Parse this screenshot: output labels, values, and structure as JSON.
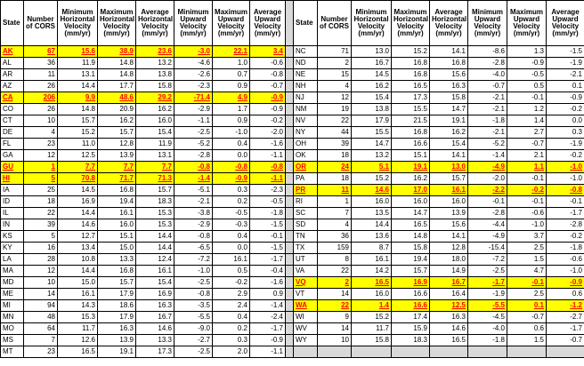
{
  "headers": [
    "State",
    "Number of CORS",
    "Minimum Horizontal Velocity (mm/yr)",
    "Maximum Horizontal Velocity (mm/yr)",
    "Average Horizontal Velocity (mm/yr)",
    "Minimum Upward Velocity (mm/yr)",
    "Maximum Upward Velocity (mm/yr)",
    "Average Upward Velocity (mm/yr)"
  ],
  "highlight_color": "#ffff00",
  "highlight_text_color": "#ff0000",
  "left_rows": [
    {
      "cells": [
        "AK",
        "67",
        "15.6",
        "38.9",
        "23.6",
        "-3.0",
        "22.1",
        "3.4"
      ],
      "highlight": true
    },
    {
      "cells": [
        "AL",
        "36",
        "11.9",
        "14.8",
        "13.2",
        "-4.6",
        "1.0",
        "-0.6"
      ],
      "highlight": false
    },
    {
      "cells": [
        "AR",
        "11",
        "13.1",
        "14.8",
        "13.8",
        "-2.6",
        "0.7",
        "-0.8"
      ],
      "highlight": false
    },
    {
      "cells": [
        "AZ",
        "26",
        "14.4",
        "17.7",
        "15.8",
        "-2.3",
        "0.9",
        "-0.7"
      ],
      "highlight": false
    },
    {
      "cells": [
        "CA",
        "206",
        "9.9",
        "48.6",
        "29.2",
        "-71.4",
        "4.9",
        "-0.9"
      ],
      "highlight": true
    },
    {
      "cells": [
        "CO",
        "26",
        "14.8",
        "20.9",
        "16.2",
        "-2.9",
        "1.7",
        "-0.9"
      ],
      "highlight": false
    },
    {
      "cells": [
        "CT",
        "10",
        "15.7",
        "16.2",
        "16.0",
        "-1.1",
        "0.9",
        "-0.2"
      ],
      "highlight": false
    },
    {
      "cells": [
        "DE",
        "4",
        "15.2",
        "15.7",
        "15.4",
        "-2.5",
        "-1.0",
        "-2.0"
      ],
      "highlight": false
    },
    {
      "cells": [
        "FL",
        "23",
        "11.0",
        "12.8",
        "11.9",
        "-5.2",
        "0.4",
        "-1.6"
      ],
      "highlight": false
    },
    {
      "cells": [
        "GA",
        "12",
        "12.5",
        "13.9",
        "13.1",
        "-2.8",
        "0.0",
        "-1.1"
      ],
      "highlight": false
    },
    {
      "cells": [
        "GU",
        "1",
        "7.7",
        "7.7",
        "7.7",
        "-0.8",
        "-0.8",
        "-0.8"
      ],
      "highlight": true
    },
    {
      "cells": [
        "HI",
        "5",
        "70.8",
        "71.7",
        "71.3",
        "-1.4",
        "-0.9",
        "-1.1"
      ],
      "highlight": true
    },
    {
      "cells": [
        "IA",
        "25",
        "14.5",
        "16.8",
        "15.7",
        "-5.1",
        "0.3",
        "-2.3"
      ],
      "highlight": false
    },
    {
      "cells": [
        "ID",
        "18",
        "16.9",
        "19.4",
        "18.3",
        "-2.1",
        "0.2",
        "-0.5"
      ],
      "highlight": false
    },
    {
      "cells": [
        "IL",
        "22",
        "14.4",
        "16.1",
        "15.3",
        "-3.8",
        "-0.5",
        "-1.8"
      ],
      "highlight": false
    },
    {
      "cells": [
        "IN",
        "39",
        "14.6",
        "16.0",
        "15.3",
        "-2.9",
        "-0.3",
        "-1.5"
      ],
      "highlight": false
    },
    {
      "cells": [
        "KS",
        "5",
        "12.7",
        "15.1",
        "14.4",
        "-0.8",
        "0.4",
        "-0.1"
      ],
      "highlight": false
    },
    {
      "cells": [
        "KY",
        "16",
        "13.4",
        "15.0",
        "14.4",
        "-6.5",
        "0.0",
        "-1.5"
      ],
      "highlight": false
    },
    {
      "cells": [
        "LA",
        "28",
        "10.8",
        "13.3",
        "12.4",
        "-7.2",
        "16.1",
        "-1.7"
      ],
      "highlight": false
    },
    {
      "cells": [
        "MA",
        "12",
        "14.4",
        "16.8",
        "16.1",
        "-1.0",
        "0.5",
        "-0.4"
      ],
      "highlight": false
    },
    {
      "cells": [
        "MD",
        "10",
        "15.0",
        "15.7",
        "15.4",
        "-2.5",
        "-0.2",
        "-1.6"
      ],
      "highlight": false
    },
    {
      "cells": [
        "ME",
        "14",
        "16.1",
        "17.9",
        "16.9",
        "-0.8",
        "2.9",
        "0.9"
      ],
      "highlight": false
    },
    {
      "cells": [
        "MI",
        "94",
        "14.3",
        "18.6",
        "16.3",
        "-3.5",
        "2.4",
        "-1.4"
      ],
      "highlight": false
    },
    {
      "cells": [
        "MN",
        "48",
        "15.3",
        "17.9",
        "16.7",
        "-5.5",
        "0.4",
        "-2.4"
      ],
      "highlight": false
    },
    {
      "cells": [
        "MO",
        "64",
        "11.7",
        "16.3",
        "14.6",
        "-9.0",
        "0.2",
        "-1.7"
      ],
      "highlight": false
    },
    {
      "cells": [
        "MS",
        "7",
        "12.6",
        "13.9",
        "13.3",
        "-2.7",
        "0.3",
        "-0.9"
      ],
      "highlight": false
    },
    {
      "cells": [
        "MT",
        "23",
        "16.5",
        "19.1",
        "17.3",
        "-2.5",
        "2.0",
        "-1.1"
      ],
      "highlight": false
    }
  ],
  "right_rows": [
    {
      "cells": [
        "NC",
        "71",
        "13.0",
        "15.2",
        "14.1",
        "-8.6",
        "1.3",
        "-1.5"
      ],
      "highlight": false
    },
    {
      "cells": [
        "ND",
        "2",
        "16.7",
        "16.8",
        "16.8",
        "-2.8",
        "-0.9",
        "-1.9"
      ],
      "highlight": false
    },
    {
      "cells": [
        "NE",
        "15",
        "14.5",
        "16.8",
        "15.6",
        "-4.0",
        "-0.5",
        "-2.1"
      ],
      "highlight": false
    },
    {
      "cells": [
        "NH",
        "4",
        "16.2",
        "16.5",
        "16.3",
        "-0.7",
        "0.5",
        "0.1"
      ],
      "highlight": false
    },
    {
      "cells": [
        "NJ",
        "12",
        "15.4",
        "17.3",
        "15.8",
        "-2.1",
        "-0.1",
        "-0.9"
      ],
      "highlight": false
    },
    {
      "cells": [
        "NM",
        "19",
        "13.8",
        "15.5",
        "14.7",
        "-2.1",
        "1.2",
        "-0.2"
      ],
      "highlight": false
    },
    {
      "cells": [
        "NV",
        "22",
        "17.9",
        "21.5",
        "19.1",
        "-1.8",
        "1.4",
        "0.0"
      ],
      "highlight": false
    },
    {
      "cells": [
        "NY",
        "44",
        "15.5",
        "16.8",
        "16.2",
        "-2.1",
        "2.7",
        "0.3"
      ],
      "highlight": false
    },
    {
      "cells": [
        "OH",
        "39",
        "14.7",
        "16.6",
        "15.4",
        "-5.2",
        "-0.7",
        "-1.9"
      ],
      "highlight": false
    },
    {
      "cells": [
        "OK",
        "18",
        "13.2",
        "15.1",
        "14.1",
        "-1.4",
        "2.1",
        "-0.2"
      ],
      "highlight": false
    },
    {
      "cells": [
        "OR",
        "24",
        "5.1",
        "19.1",
        "13.0",
        "-4.9",
        "1.1",
        "-1.0"
      ],
      "highlight": true
    },
    {
      "cells": [
        "PA",
        "18",
        "15.2",
        "16.2",
        "15.7",
        "-2.0",
        "-0.1",
        "-1.0"
      ],
      "highlight": false
    },
    {
      "cells": [
        "PR",
        "11",
        "14.6",
        "17.0",
        "16.1",
        "-2.2",
        "-0.2",
        "-0.8"
      ],
      "highlight": true
    },
    {
      "cells": [
        "RI",
        "1",
        "16.0",
        "16.0",
        "16.0",
        "-0.1",
        "-0.1",
        "-0.1"
      ],
      "highlight": false
    },
    {
      "cells": [
        "SC",
        "7",
        "13.5",
        "14.7",
        "13.9",
        "-2.8",
        "-0.6",
        "-1.7"
      ],
      "highlight": false
    },
    {
      "cells": [
        "SD",
        "4",
        "14.4",
        "16.5",
        "15.6",
        "-4.4",
        "-1.0",
        "-2.8"
      ],
      "highlight": false
    },
    {
      "cells": [
        "TN",
        "36",
        "13.6",
        "14.8",
        "14.1",
        "-4.9",
        "3.7",
        "-0.2"
      ],
      "highlight": false
    },
    {
      "cells": [
        "TX",
        "159",
        "8.7",
        "15.8",
        "12.8",
        "-15.4",
        "2.5",
        "-1.8"
      ],
      "highlight": false
    },
    {
      "cells": [
        "UT",
        "8",
        "16.1",
        "19.4",
        "18.0",
        "-7.2",
        "1.5",
        "-0.6"
      ],
      "highlight": false
    },
    {
      "cells": [
        "VA",
        "22",
        "14.2",
        "15.7",
        "14.9",
        "-2.5",
        "4.7",
        "-1.0"
      ],
      "highlight": false
    },
    {
      "cells": [
        "VQ",
        "2",
        "16.5",
        "16.9",
        "16.7",
        "-1.7",
        "-0.1",
        "-0.9"
      ],
      "highlight": true
    },
    {
      "cells": [
        "VT",
        "14",
        "16.0",
        "16.6",
        "16.4",
        "-1.9",
        "2.5",
        "0.6"
      ],
      "highlight": false
    },
    {
      "cells": [
        "WA",
        "22",
        "1.4",
        "16.6",
        "12.5",
        "-5.5",
        "0.1",
        "-1.2"
      ],
      "highlight": true
    },
    {
      "cells": [
        "WI",
        "9",
        "15.2",
        "17.4",
        "16.3",
        "-4.5",
        "-0.7",
        "-2.7"
      ],
      "highlight": false
    },
    {
      "cells": [
        "WV",
        "14",
        "11.7",
        "15.9",
        "14.6",
        "-4.0",
        "0.6",
        "-1.7"
      ],
      "highlight": false
    },
    {
      "cells": [
        "WY",
        "10",
        "15.8",
        "18.3",
        "16.5",
        "-1.8",
        "1.5",
        "-0.7"
      ],
      "highlight": false
    },
    {
      "cells": [
        "",
        "",
        "",
        "",
        "",
        "",
        "",
        ""
      ],
      "highlight": false
    }
  ]
}
